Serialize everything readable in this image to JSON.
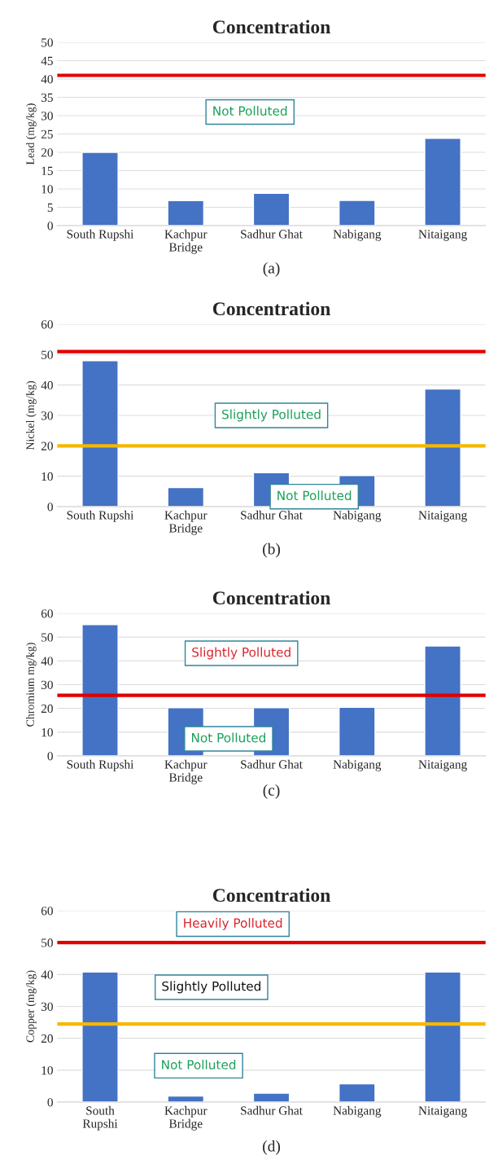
{
  "chart_data": [
    {
      "type": "bar",
      "title": "Concentration",
      "ylabel": "Lead (mg/kg)",
      "categories": [
        "South Rupshi",
        "Kachpur\nBridge",
        "Sadhur Ghat",
        "Nabigang",
        "Nitaigang"
      ],
      "values": [
        20,
        6.8,
        8.8,
        6.9,
        23.8
      ],
      "color": "#4472c4",
      "ylim": [
        0,
        50
      ],
      "yticks": [
        0,
        5,
        10,
        15,
        20,
        25,
        30,
        35,
        40,
        45,
        50
      ],
      "grid": "y",
      "ref_lines": [
        {
          "axis": "y",
          "value": 41,
          "color": "#e00000"
        }
      ],
      "annotations": [
        "Not Polluted",
        "(a)"
      ]
    },
    {
      "type": "bar",
      "title": "Concentration",
      "ylabel": "Nickel (mg/kg)",
      "categories": [
        "South Rupshi",
        "Kachpur\nBridge",
        "Sadhur Ghat",
        "Nabigang",
        "Nitaigang"
      ],
      "values": [
        48,
        6.3,
        11.2,
        10.2,
        38.7
      ],
      "color": "#4472c4",
      "ylim": [
        0,
        60
      ],
      "yticks": [
        0,
        10,
        20,
        30,
        40,
        50,
        60
      ],
      "grid": "y",
      "ref_lines": [
        {
          "axis": "y",
          "value": 51,
          "color": "#e00000"
        },
        {
          "axis": "y",
          "value": 20,
          "color": "#f5b800"
        }
      ],
      "annotations": [
        "Slightly Polluted",
        "Not Polluted",
        "(b)"
      ]
    },
    {
      "type": "bar",
      "title": "Concentration",
      "ylabel": "Chromium mg/kg)",
      "categories": [
        "South Rupshi",
        "Kachpur\nBridge",
        "Sadhur Ghat",
        "Nabigang",
        "Nitaigang"
      ],
      "values": [
        55.3,
        20.3,
        20.3,
        20.5,
        46.3
      ],
      "color": "#4472c4",
      "ylim": [
        0,
        60
      ],
      "yticks": [
        0,
        10,
        20,
        30,
        40,
        50,
        60
      ],
      "grid": "y",
      "ref_lines": [
        {
          "axis": "y",
          "value": 25.5,
          "color": "#e00000"
        }
      ],
      "annotations": [
        "Slightly Polluted",
        "Not Polluted",
        "(c)"
      ]
    },
    {
      "type": "bar",
      "title": "Concentration",
      "ylabel": "Copper (mg/kg)",
      "categories": [
        "South\nRupshi",
        "Kachpur\nBridge",
        "Sadhur Ghat",
        "Nabigang",
        "Nitaigang"
      ],
      "values": [
        40.8,
        1.9,
        2.8,
        5.7,
        40.8
      ],
      "color": "#4472c4",
      "ylim": [
        0,
        60
      ],
      "yticks": [
        0,
        10,
        20,
        30,
        40,
        50,
        60
      ],
      "grid": "y",
      "ref_lines": [
        {
          "axis": "y",
          "value": 50,
          "color": "#e00000"
        },
        {
          "axis": "y",
          "value": 24.5,
          "color": "#f5b800"
        }
      ],
      "annotations": [
        "Heavily Polluted",
        "Slightly Polluted",
        "Not Polluted",
        "(d)"
      ]
    }
  ]
}
